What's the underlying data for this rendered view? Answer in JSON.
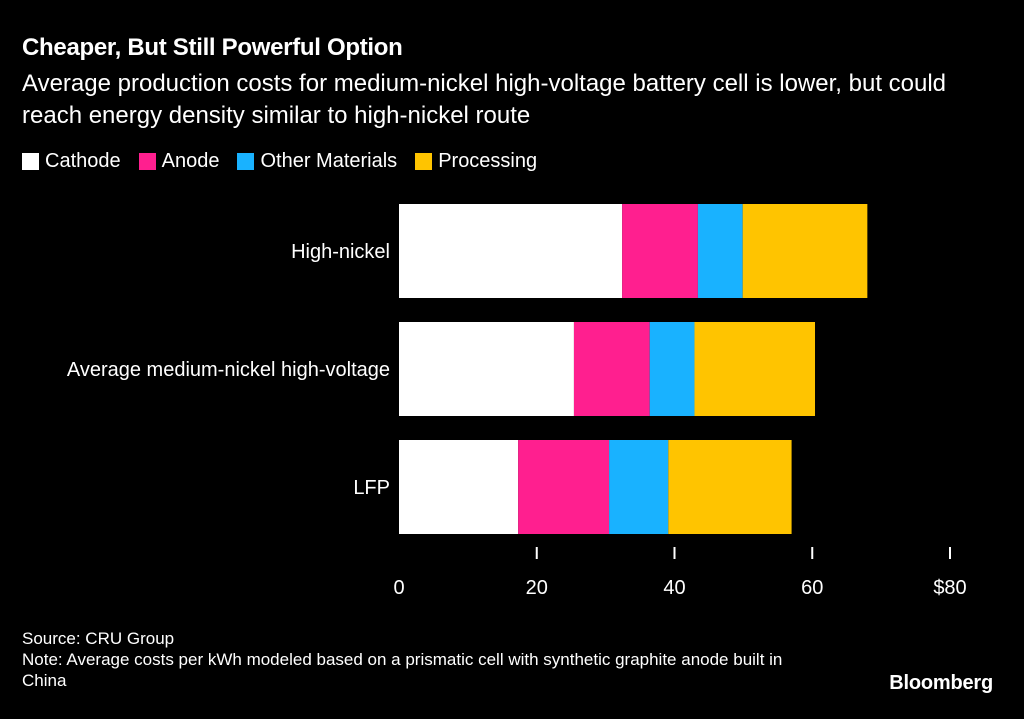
{
  "title": "Cheaper, But Still Powerful Option",
  "subtitle": "Average production costs for medium-nickel high-voltage battery cell is lower, but could reach energy density similar to high-nickel route",
  "legend": [
    {
      "label": "Cathode",
      "color": "#ffffff"
    },
    {
      "label": "Anode",
      "color": "#ff1f8f"
    },
    {
      "label": "Other Materials",
      "color": "#19b2ff"
    },
    {
      "label": "Processing",
      "color": "#ffc400"
    }
  ],
  "chart_data": {
    "type": "bar",
    "orientation": "horizontal",
    "stacked": true,
    "categories": [
      "High-nickel",
      "Average medium-nickel high-voltage",
      "LFP"
    ],
    "series": [
      {
        "name": "Cathode",
        "color": "#ffffff",
        "values": [
          32.4,
          25.4,
          17.3
        ]
      },
      {
        "name": "Anode",
        "color": "#ff1f8f",
        "values": [
          11.0,
          11.0,
          13.2
        ]
      },
      {
        "name": "Other Materials",
        "color": "#19b2ff",
        "values": [
          6.5,
          6.5,
          8.6
        ]
      },
      {
        "name": "Processing",
        "color": "#ffc400",
        "values": [
          18.1,
          17.5,
          17.9
        ]
      }
    ],
    "xlim": [
      0,
      80
    ],
    "x_ticks": [
      0,
      20,
      40,
      60,
      80
    ],
    "x_tick_labels": [
      "0",
      "20",
      "40",
      "60",
      "$80"
    ],
    "legend_position": "top-left"
  },
  "footer": {
    "source": "Source: CRU Group",
    "note": "Note: Average costs per kWh modeled based on a prismatic cell with synthetic graphite anode built in China"
  },
  "brand": "Bloomberg"
}
